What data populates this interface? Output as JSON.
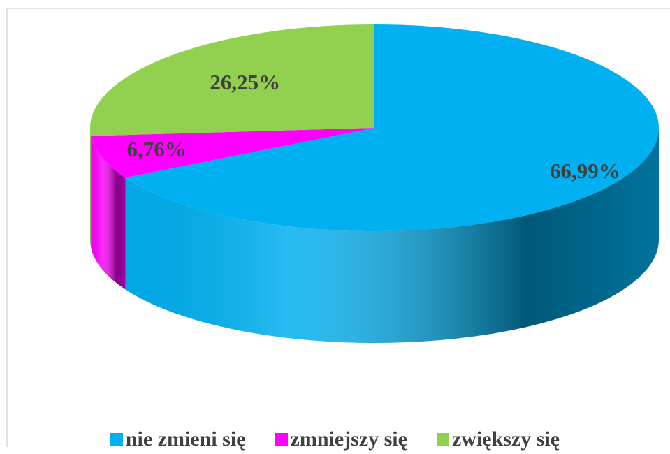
{
  "chart_data": {
    "type": "pie",
    "categories": [
      "nie zmieni się",
      "zmniejszy się",
      "zwiększy się"
    ],
    "values": [
      66.99,
      6.76,
      26.25
    ],
    "value_labels": [
      "66,99%",
      "6,76%",
      "26,25%"
    ],
    "colors": [
      "#00b0f0",
      "#ff00ff",
      "#92d050"
    ],
    "legend": "bottom"
  }
}
